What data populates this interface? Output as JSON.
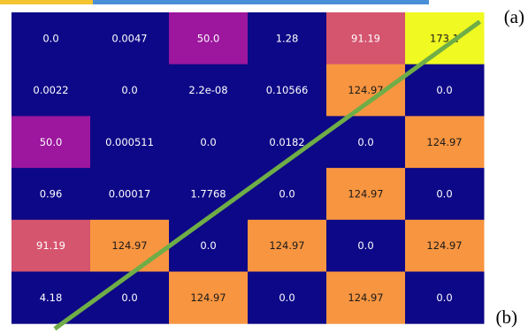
{
  "labels": {
    "a": "(a)",
    "b": "(b)"
  },
  "colors": {
    "low": "#0d0887",
    "purple": "#9c179e",
    "pink": "#d5546e",
    "orange": "#f89540",
    "yellow": "#f0f921",
    "line": "#6fad47",
    "strip_gold": "#f4c430",
    "strip_blue": "#4a90d9"
  },
  "chart_data": {
    "type": "heatmap",
    "title": "",
    "xlabel": "",
    "ylabel": "",
    "rows": [
      [
        "0.0",
        "0.0047",
        "50.0",
        "1.28",
        "91.19",
        "173.1"
      ],
      [
        "0.0022",
        "0.0",
        "2.2e-08",
        "0.10566",
        "124.97",
        "0.0"
      ],
      [
        "50.0",
        "0.000511",
        "0.0",
        "0.0182",
        "0.0",
        "124.97"
      ],
      [
        "0.96",
        "0.00017",
        "1.7768",
        "0.0",
        "124.97",
        "0.0"
      ],
      [
        "91.19",
        "124.97",
        "0.0",
        "124.97",
        "0.0",
        "124.97"
      ],
      [
        "4.18",
        "0.0",
        "124.97",
        "0.0",
        "124.97",
        "0.0"
      ]
    ],
    "value_range": [
      0,
      173.1
    ],
    "overlay_line": {
      "from_cell": [
        5,
        0
      ],
      "to_cell": [
        0,
        5
      ]
    }
  }
}
